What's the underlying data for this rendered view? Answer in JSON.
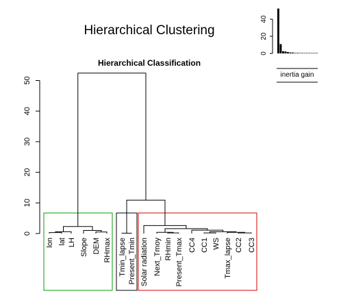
{
  "figure": {
    "title": "Hierarchical Clustering"
  },
  "chart_data": [
    {
      "type": "dendrogram",
      "title": "Hierarchical Classification",
      "ylim": [
        0,
        55
      ],
      "yticks": [
        0,
        10,
        20,
        30,
        40,
        50
      ],
      "leaves": [
        "lon",
        "lat",
        "LH",
        "Slope",
        "DEM",
        "RHmax",
        "Tmin_lapse",
        "Present_Tmin",
        "Solar radiation",
        "Next_Tmoy",
        "RHmin",
        "Present_Tmax",
        "CC4",
        "CC1",
        "WS",
        "Tmax_lapse",
        "CC2",
        "CC3"
      ],
      "merges": [
        {
          "left": "lon",
          "right": "lat",
          "height": 0.3
        },
        {
          "left": "m1",
          "right": "LH",
          "height": 0.6
        },
        {
          "left": "DEM",
          "right": "RHmax",
          "height": 0.5
        },
        {
          "left": "Slope",
          "right": "m3",
          "height": 1.0
        },
        {
          "left": "m2",
          "right": "m4",
          "height": 2.3
        },
        {
          "left": "Tmin_lapse",
          "right": "Present_Tmin",
          "height": 0.1
        },
        {
          "left": "CC1",
          "right": "WS",
          "height": 0.2
        },
        {
          "left": "CC2",
          "right": "CC3",
          "height": 0.2
        },
        {
          "left": "Tmax_lapse",
          "right": "m8",
          "height": 0.4
        },
        {
          "left": "m7",
          "right": "m9",
          "height": 0.6
        },
        {
          "left": "CC4",
          "right": "m10",
          "height": 1.1
        },
        {
          "left": "RHmin",
          "right": "Present_Tmax",
          "height": 0.2
        },
        {
          "left": "Next_Tmoy",
          "right": "m12",
          "height": 0.4
        },
        {
          "left": "m13",
          "right": "m11",
          "height": 1.6
        },
        {
          "left": "Solar radiation",
          "right": "m14",
          "height": 2.6
        },
        {
          "left": "m6",
          "right": "m15",
          "height": 10.9
        },
        {
          "left": "m5",
          "right": "m16",
          "height": 52.4
        }
      ],
      "clusters": [
        {
          "leaves": [
            "lon",
            "lat",
            "LH",
            "Slope",
            "DEM",
            "RHmax"
          ],
          "color": "#00a000"
        },
        {
          "leaves": [
            "Tmin_lapse",
            "Present_Tmin"
          ],
          "color": "#000000"
        },
        {
          "leaves": [
            "Solar radiation",
            "Next_Tmoy",
            "RHmin",
            "Present_Tmax",
            "CC4",
            "CC1",
            "WS",
            "Tmax_lapse",
            "CC2",
            "CC3"
          ],
          "color": "#d00000"
        }
      ]
    },
    {
      "type": "bar",
      "xlabel": "inertia gain",
      "ylim": [
        0,
        55
      ],
      "yticks": [
        0,
        20,
        40
      ],
      "values": [
        52.4,
        10.9,
        2.6,
        2.3,
        1.6,
        1.1,
        1.0,
        0.6,
        0.6,
        0.5,
        0.4,
        0.4,
        0.3,
        0.2,
        0.2,
        0.2,
        0.1
      ]
    }
  ]
}
